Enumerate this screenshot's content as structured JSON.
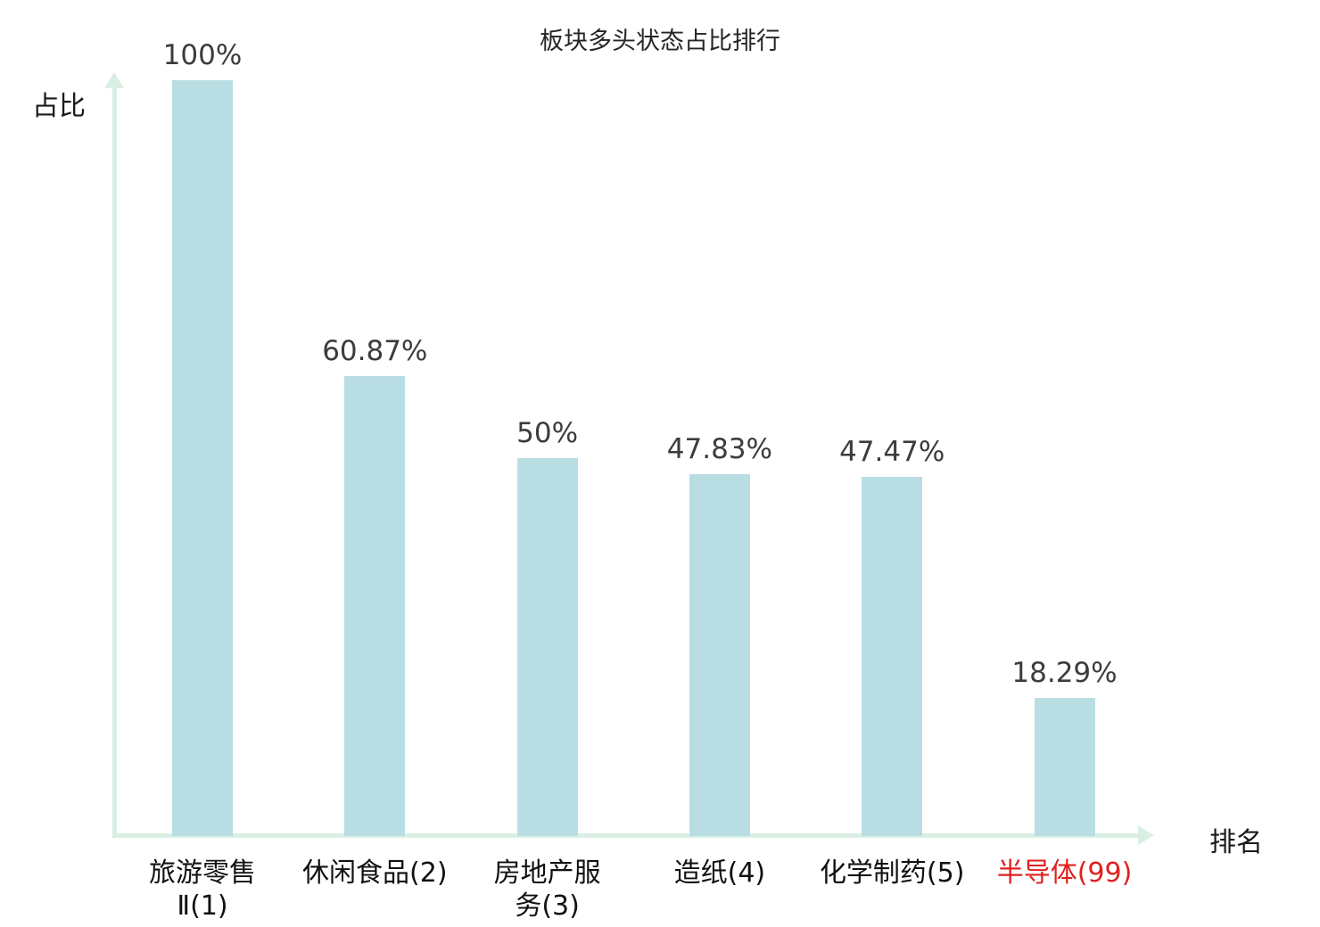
{
  "chart_data": {
    "type": "bar",
    "title": "板块多头状态占比排行",
    "ylabel": "占比",
    "xlabel": "排名",
    "categories": [
      "旅游零售\nⅡ(1)",
      "休闲食品(2)",
      "房地产服\n务(3)",
      "造纸(4)",
      "化学制药(5)",
      "半导体(99)"
    ],
    "category_full_names": [
      "旅游零售Ⅱ",
      "休闲食品",
      "房地产服务",
      "造纸",
      "化学制药",
      "半导体"
    ],
    "ranks": [
      1,
      2,
      3,
      4,
      5,
      99
    ],
    "values": [
      100,
      60.87,
      50,
      47.83,
      47.47,
      18.29
    ],
    "value_labels": [
      "100%",
      "60.87%",
      "50%",
      "47.83%",
      "47.47%",
      "18.29%"
    ],
    "highlight_index": 5,
    "ylim": [
      0,
      100
    ],
    "grid": false,
    "legend": "none",
    "colors": {
      "bar_fill": "#b8dee4",
      "axis": "#d9efe4",
      "value_label": "#3c3c3c",
      "category_label": "#111111",
      "highlight_category_label": "#e02020",
      "title": "#262626"
    }
  }
}
